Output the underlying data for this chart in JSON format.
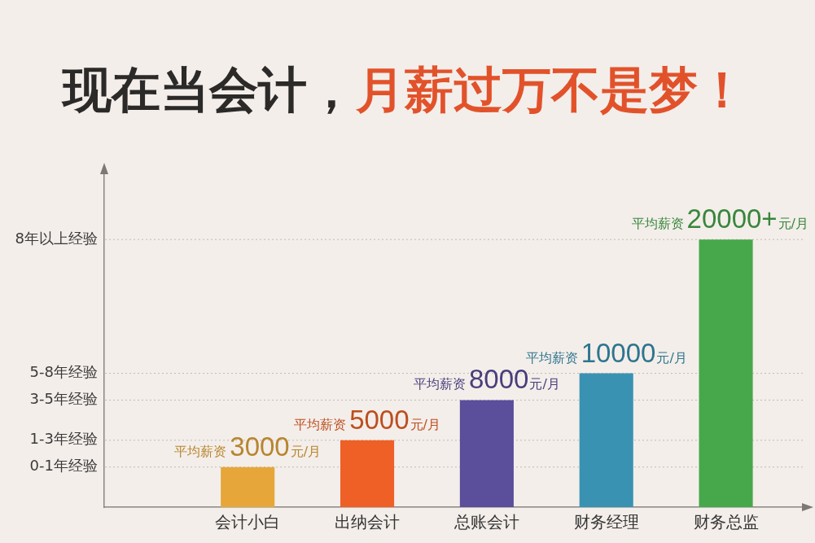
{
  "chart_data": {
    "type": "bar",
    "title": "现在当会计，月薪过万不是梦！",
    "categories": [
      "会计小白",
      "出纳会计",
      "总账会计",
      "财务经理",
      "财务总监"
    ],
    "values": [
      3000,
      5000,
      8000,
      10000,
      20000
    ],
    "colors": [
      "#e6a63a",
      "#ee6026",
      "#5b4e9a",
      "#3a92b2",
      "#46a84a"
    ],
    "tick_labels": "x",
    "ref_lines": [
      {
        "axis": "y",
        "value": 3000,
        "label": "0-1年经验",
        "line_style": "dotted"
      },
      {
        "axis": "y",
        "value": 5000,
        "label": "1-3年经验",
        "line_style": "dotted"
      },
      {
        "axis": "y",
        "value": 8000,
        "label": "3-5年经验",
        "line_style": "dotted"
      },
      {
        "axis": "y",
        "value": 10000,
        "label": "5-8年经验",
        "line_style": "dotted"
      },
      {
        "axis": "y",
        "value": 20000,
        "label": "8年以上经验",
        "line_style": "dotted"
      }
    ],
    "value_labels": [
      "平均薪资3000元/月",
      "平均薪资5000元/月",
      "平均薪资8000元/月",
      "平均薪资10000元/月",
      "平均薪资20000+元/月"
    ]
  }
}
